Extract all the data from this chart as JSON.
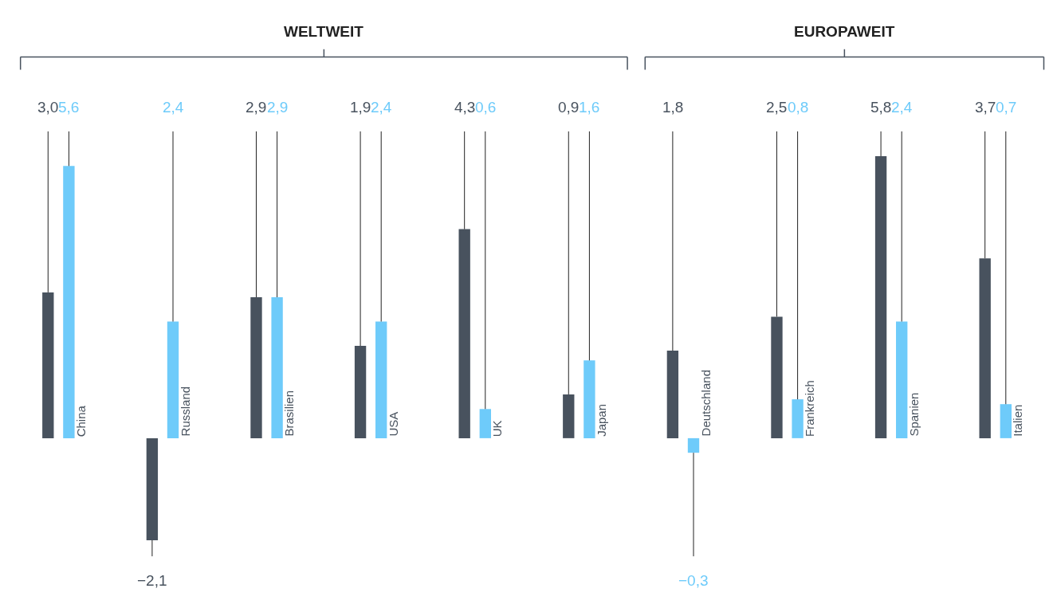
{
  "chart_data": {
    "type": "bar",
    "categories": [
      "China",
      "Russland",
      "Brasilien",
      "USA",
      "UK",
      "Japan",
      "Deutschland",
      "Frankreich",
      "Spanien",
      "Italien"
    ],
    "series": [
      {
        "color": "#48525e",
        "values": [
          3.0,
          -2.1,
          2.9,
          1.9,
          4.3,
          0.9,
          1.8,
          2.5,
          5.8,
          3.7
        ],
        "value_labels": [
          "3,0",
          "−2,1",
          "2,9",
          "1,9",
          "4,3",
          "0,9",
          "1,8",
          "2,5",
          "5,8",
          "3,7"
        ]
      },
      {
        "color": "#6ecbfa",
        "values": [
          5.6,
          2.4,
          2.9,
          2.4,
          0.6,
          1.6,
          -0.3,
          0.8,
          2.4,
          0.7
        ],
        "value_labels": [
          "5,6",
          "2,4",
          "2,9",
          "2,4",
          "0,6",
          "1,6",
          "−0,3",
          "0,8",
          "2,4",
          "0,7"
        ]
      }
    ],
    "annotations": [
      "WELTWEIT",
      "EUROPAWEIT"
    ]
  }
}
